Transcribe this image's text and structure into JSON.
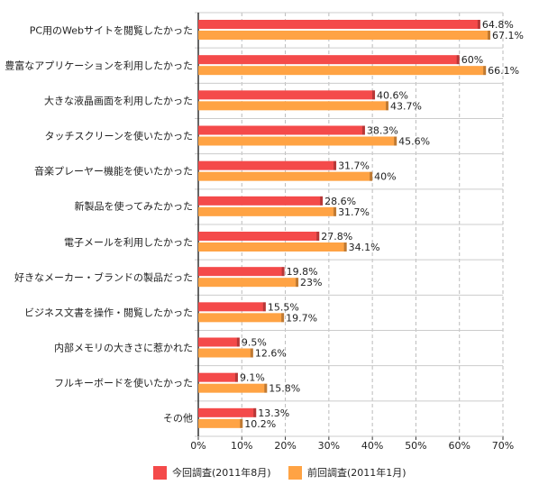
{
  "chart_data": {
    "type": "bar",
    "orientation": "horizontal",
    "categories": [
      "PC用のWebサイトを閲覧したかった",
      "豊富なアプリケーションを利用したかった",
      "大きな液晶画面を利用したかった",
      "タッチスクリーンを使いたかった",
      "音楽プレーヤー機能を使いたかった",
      "新製品を使ってみたかった",
      "電子メールを利用したかった",
      "好きなメーカー・ブランドの製品だった",
      "ビジネス文書を操作・閲覧したかった",
      "内部メモリの大きさに惹かれた",
      "フルキーボードを使いたかった",
      "その他"
    ],
    "series": [
      {
        "name": "今回調査(2011年8月)",
        "color": "#f44a4a",
        "values": [
          64.8,
          60,
          40.6,
          38.3,
          31.7,
          28.6,
          27.8,
          19.8,
          15.5,
          9.5,
          9.1,
          13.3
        ],
        "value_labels": [
          "64.8%",
          "60%",
          "40.6%",
          "38.3%",
          "31.7%",
          "28.6%",
          "27.8%",
          "19.8%",
          "15.5%",
          "9.5%",
          "9.1%",
          "13.3%"
        ]
      },
      {
        "name": "前回調査(2011年1月)",
        "color": "#ffa344",
        "values": [
          67.1,
          66.1,
          43.7,
          45.6,
          40,
          31.7,
          34.1,
          23,
          19.7,
          12.6,
          15.8,
          10.2
        ],
        "value_labels": [
          "67.1%",
          "66.1%",
          "43.7%",
          "45.6%",
          "40%",
          "31.7%",
          "34.1%",
          "23%",
          "19.7%",
          "12.6%",
          "15.8%",
          "10.2%"
        ]
      }
    ],
    "xlim": [
      0,
      70
    ],
    "xticks": [
      {
        "value": 0,
        "label": "0%"
      },
      {
        "value": 10,
        "label": "10%"
      },
      {
        "value": 20,
        "label": "20%"
      },
      {
        "value": 30,
        "label": "30%"
      },
      {
        "value": 40,
        "label": "40%"
      },
      {
        "value": 50,
        "label": "50%"
      },
      {
        "value": 60,
        "label": "60%"
      },
      {
        "value": 70,
        "label": "70%"
      }
    ],
    "grid": true,
    "legend": "bottom"
  }
}
